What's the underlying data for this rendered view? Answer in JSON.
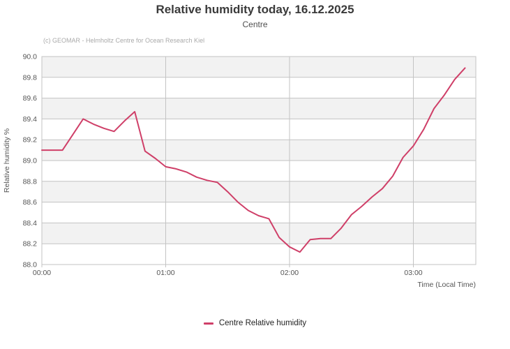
{
  "header": {
    "title": "Relative humidity today, 16.12.2025",
    "subtitle": "Centre",
    "credit": "(c) GEOMAR - Helmholtz Centre for Ocean Research Kiel"
  },
  "axes": {
    "y_title": "Relative humidity %",
    "x_title": "Time (Local Time)"
  },
  "legend": {
    "items": [
      {
        "label": "Centre Relative humidity",
        "color": "#cf3f68"
      }
    ]
  },
  "colors": {
    "line": "#cf3f68",
    "grid": "#c3c3c3",
    "band_fill": "#f2f2f2",
    "plot_border": "#c3c3c3",
    "tick_text": "#555555",
    "axis_title_text": "#555555",
    "title_text": "#3a3a3a",
    "subtitle_text": "#4f4f4f",
    "credit_text": "#aaaaaa",
    "legend_text": "#222222"
  },
  "chart_data": {
    "type": "line",
    "title": "Relative humidity today, 16.12.2025",
    "subtitle": "Centre",
    "xlabel": "Time (Local Time)",
    "ylabel": "Relative humidity %",
    "ylim": [
      88.0,
      90.0
    ],
    "ytick_step": 0.2,
    "y_tick_labels": [
      "90.0",
      "89.8",
      "89.6",
      "89.4",
      "89.2",
      "89.0",
      "88.8",
      "88.6",
      "88.4",
      "88.2",
      "88.0"
    ],
    "x_tick_labels": [
      "00:00",
      "01:00",
      "02:00",
      "03:00"
    ],
    "xlim_minutes": [
      0,
      210
    ],
    "grid": "horizontal and vertical gridlines, alternating horizontal gray bands",
    "legend_position": "bottom-center",
    "series": [
      {
        "name": "Centre Relative humidity",
        "color": "#cf3f68",
        "x": [
          "00:00",
          "00:05",
          "00:10",
          "00:15",
          "00:20",
          "00:25",
          "00:30",
          "00:35",
          "00:40",
          "00:45",
          "00:50",
          "00:55",
          "01:00",
          "01:05",
          "01:10",
          "01:15",
          "01:20",
          "01:25",
          "01:30",
          "01:35",
          "01:40",
          "01:45",
          "01:50",
          "01:55",
          "02:00",
          "02:05",
          "02:10",
          "02:15",
          "02:20",
          "02:25",
          "02:30",
          "02:35",
          "02:40",
          "02:45",
          "02:50",
          "02:55",
          "03:00",
          "03:05",
          "03:10",
          "03:15",
          "03:20",
          "03:25"
        ],
        "values": [
          89.1,
          89.1,
          89.1,
          89.25,
          89.4,
          89.35,
          89.31,
          89.28,
          89.38,
          89.47,
          89.09,
          89.02,
          88.94,
          88.92,
          88.89,
          88.84,
          88.81,
          88.79,
          88.7,
          88.6,
          88.52,
          88.47,
          88.44,
          88.26,
          88.17,
          88.12,
          88.24,
          88.25,
          88.25,
          88.35,
          88.48,
          88.56,
          88.65,
          88.73,
          88.85,
          89.03,
          89.14,
          89.3,
          89.5,
          89.63,
          89.78,
          89.89
        ]
      }
    ]
  }
}
